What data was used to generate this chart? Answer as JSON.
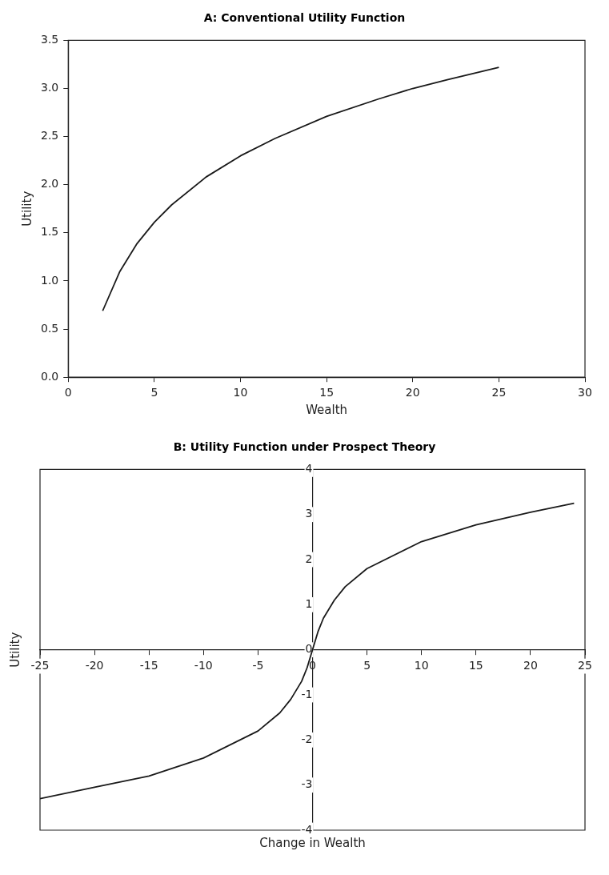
{
  "chart_data": [
    {
      "type": "line",
      "title": "A: Conventional Utility Function",
      "xlabel": "Wealth",
      "ylabel": "Utility",
      "xlim": [
        0,
        30
      ],
      "xticks": [
        0,
        5,
        10,
        15,
        20,
        25,
        30
      ],
      "ylim": [
        0,
        3.5
      ],
      "yticks": [
        {
          "value": 0,
          "label": "0.0"
        },
        0.5,
        {
          "value": 1,
          "label": "1.0"
        },
        1.5,
        {
          "value": 2,
          "label": "2.0"
        },
        2.5,
        {
          "value": 3,
          "label": "3.0"
        },
        3.5
      ],
      "grid": false,
      "legend": false,
      "marker": "none",
      "line_style": "solid",
      "series": [
        {
          "color": "#1a1a1a",
          "x": [
            2,
            3,
            4,
            5,
            6,
            8,
            10,
            12,
            15,
            18,
            20,
            22,
            25
          ],
          "values": [
            0.69,
            1.1,
            1.39,
            1.61,
            1.79,
            2.08,
            2.3,
            2.48,
            2.71,
            2.89,
            3.0,
            3.09,
            3.22
          ]
        }
      ]
    },
    {
      "type": "line",
      "title": "B: Utility Function under Prospect Theory",
      "xlabel": "Change in Wealth",
      "ylabel": "Utility",
      "xlim": [
        -25,
        25
      ],
      "xticks": [
        -25,
        -20,
        -15,
        -10,
        -5,
        0,
        5,
        10,
        15,
        20,
        25
      ],
      "ylim": [
        -4,
        4
      ],
      "yticks": [
        -4,
        -3,
        -2,
        -1,
        0,
        1,
        2,
        3,
        4
      ],
      "grid": false,
      "legend": false,
      "marker": "none",
      "line_style": "solid",
      "series": [
        {
          "color": "#1a1a1a",
          "x": [
            -25,
            -20,
            -15,
            -10,
            -5,
            -3,
            -2,
            -1,
            -0.5,
            0,
            0.5,
            1,
            2,
            3,
            5,
            10,
            15,
            20,
            24
          ],
          "values": [
            -3.3,
            -3.05,
            -2.8,
            -2.4,
            -1.8,
            -1.4,
            -1.1,
            -0.7,
            -0.4,
            0,
            0.4,
            0.7,
            1.1,
            1.4,
            1.8,
            2.4,
            2.77,
            3.05,
            3.25
          ]
        }
      ]
    }
  ]
}
